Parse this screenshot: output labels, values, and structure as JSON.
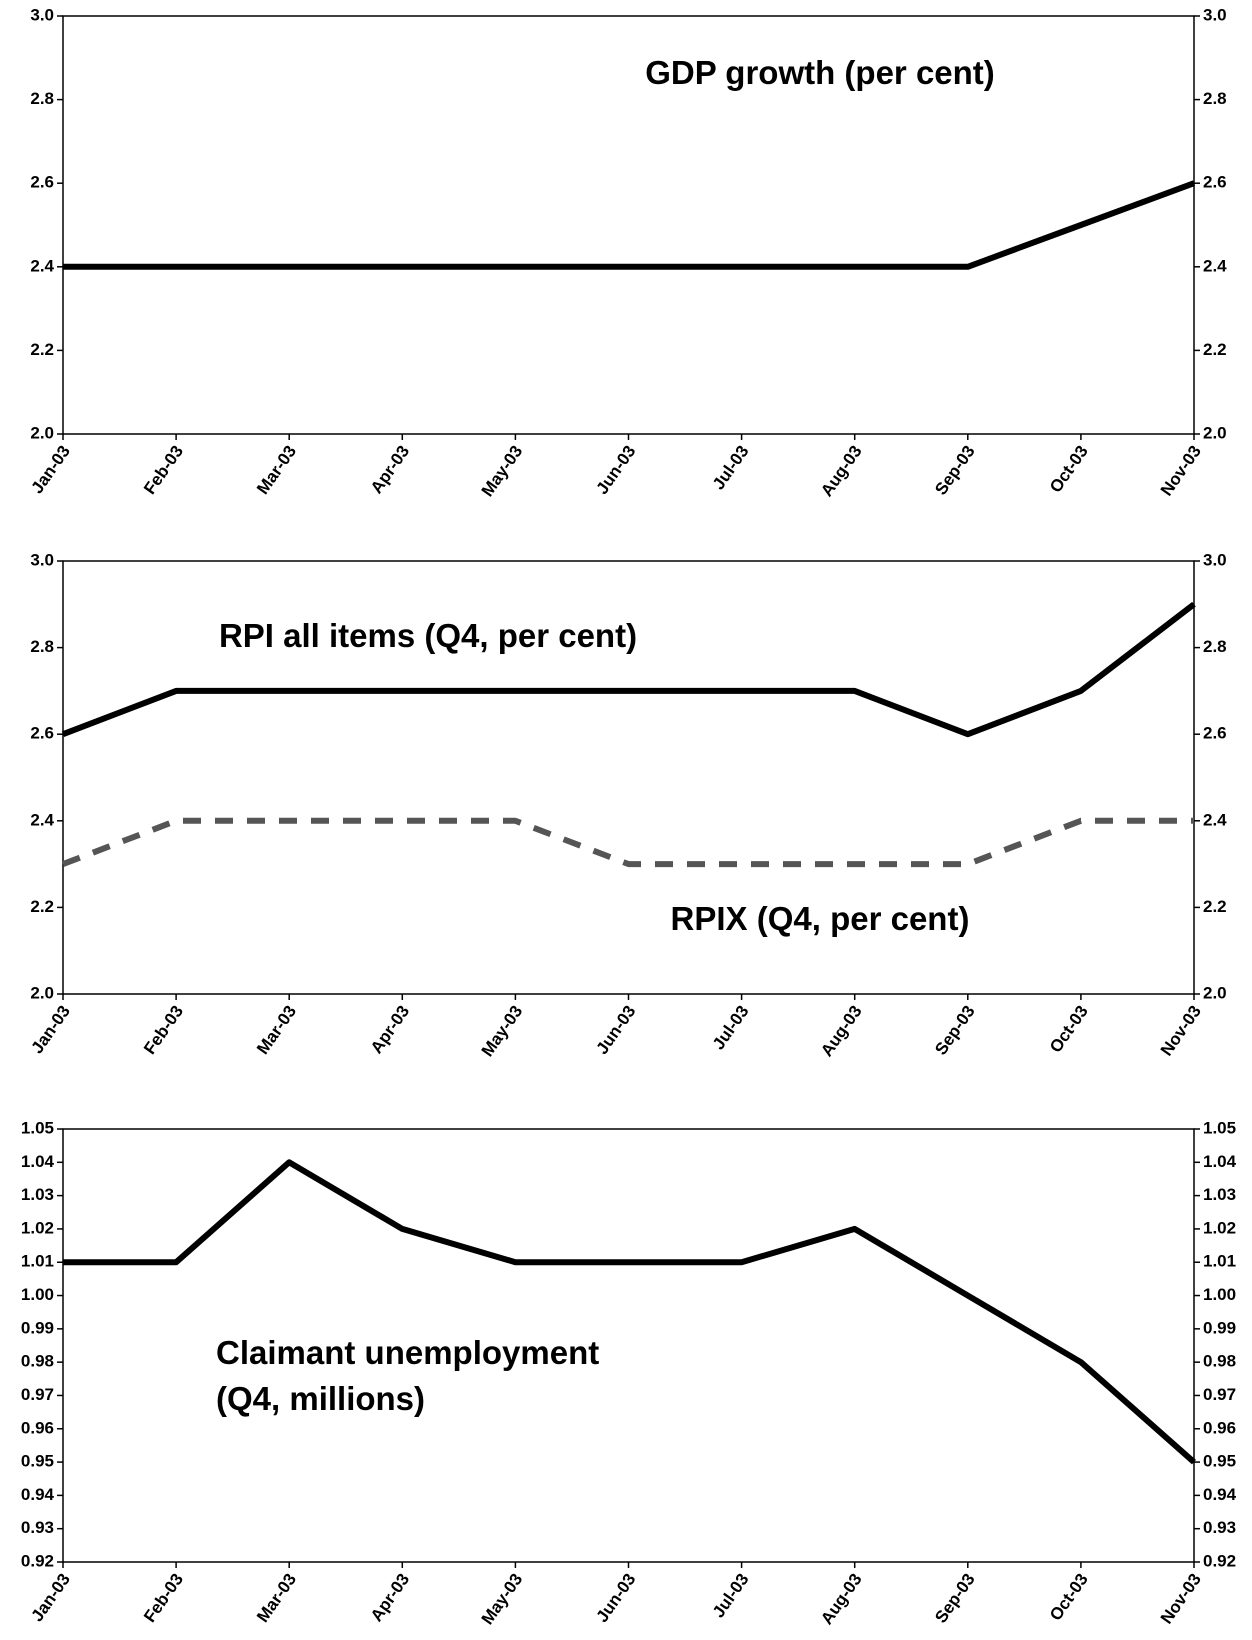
{
  "chart_data": [
    {
      "type": "line",
      "categories": [
        "Jan-03",
        "Feb-03",
        "Mar-03",
        "Apr-03",
        "May-03",
        "Jun-03",
        "Jul-03",
        "Aug-03",
        "Sep-03",
        "Oct-03",
        "Nov-03"
      ],
      "series": [
        {
          "color": "#000000",
          "dash": "solid",
          "values": [
            2.4,
            2.4,
            2.4,
            2.4,
            2.4,
            2.4,
            2.4,
            2.4,
            2.4,
            2.5,
            2.6
          ]
        }
      ],
      "annotations": [
        "GDP growth (per cent)"
      ],
      "ylim": [
        2.0,
        3.0
      ],
      "yticks": [
        {
          "value": 2.0,
          "label": "2.0"
        },
        2.2,
        2.4,
        2.6,
        2.8,
        {
          "value": 3.0,
          "label": "3.0"
        }
      ]
    },
    {
      "type": "line",
      "categories": [
        "Jan-03",
        "Feb-03",
        "Mar-03",
        "Apr-03",
        "May-03",
        "Jun-03",
        "Jul-03",
        "Aug-03",
        "Sep-03",
        "Oct-03",
        "Nov-03"
      ],
      "series": [
        {
          "color": "#000000",
          "dash": "solid",
          "values": [
            2.6,
            2.7,
            2.7,
            2.7,
            2.7,
            2.7,
            2.7,
            2.7,
            2.6,
            2.7,
            2.9
          ]
        },
        {
          "color": "#555555",
          "dash": "dashed",
          "values": [
            2.3,
            2.4,
            2.4,
            2.4,
            2.4,
            2.3,
            2.3,
            2.3,
            2.3,
            2.4,
            2.4
          ]
        }
      ],
      "annotations": [
        "RPI all items (Q4, per cent)",
        "RPIX (Q4, per cent)"
      ],
      "ylim": [
        2.0,
        3.0
      ],
      "yticks": [
        {
          "value": 2.0,
          "label": "2.0"
        },
        2.2,
        2.4,
        2.6,
        2.8,
        {
          "value": 3.0,
          "label": "3.0"
        }
      ]
    },
    {
      "type": "line",
      "categories": [
        "Jan-03",
        "Feb-03",
        "Mar-03",
        "Apr-03",
        "May-03",
        "Jun-03",
        "Jul-03",
        "Aug-03",
        "Sep-03",
        "Oct-03",
        "Nov-03"
      ],
      "series": [
        {
          "color": "#000000",
          "dash": "solid",
          "values": [
            1.01,
            1.01,
            1.04,
            1.02,
            1.01,
            1.01,
            1.01,
            1.02,
            1.0,
            0.98,
            0.95
          ]
        }
      ],
      "annotations": [
        "Claimant unemployment",
        "(Q4, millions)"
      ],
      "ylim": [
        0.92,
        1.05
      ],
      "yticks": [
        0.92,
        0.93,
        0.94,
        0.95,
        0.96,
        0.97,
        0.98,
        0.99,
        {
          "value": 1.0,
          "label": "1.00"
        },
        1.01,
        1.02,
        1.03,
        1.04,
        1.05
      ]
    }
  ]
}
